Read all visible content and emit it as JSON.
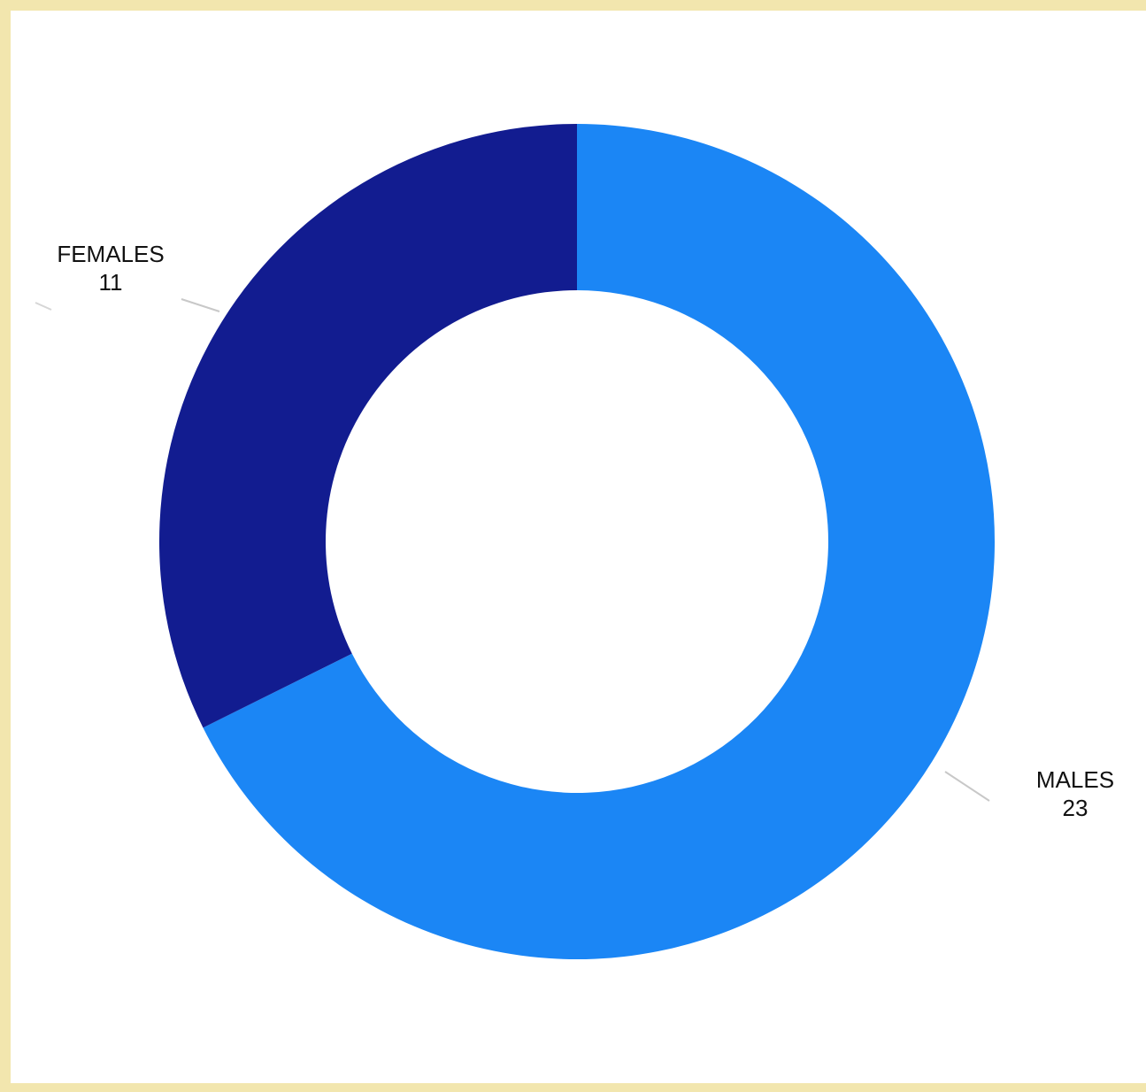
{
  "chart_data": {
    "type": "pie",
    "variant": "donut",
    "title": "",
    "categories": [
      "MALES",
      "FEMALES"
    ],
    "values": [
      23,
      11
    ],
    "colors": [
      "#1b86f5",
      "#121c90"
    ],
    "start": "top",
    "direction": "clockwise",
    "labels": [
      {
        "name": "MALES",
        "value": "23"
      },
      {
        "name": "FEMALES",
        "value": "11"
      }
    ]
  },
  "colors": {
    "border": "#f2e6ae",
    "background": "#ffffff"
  }
}
